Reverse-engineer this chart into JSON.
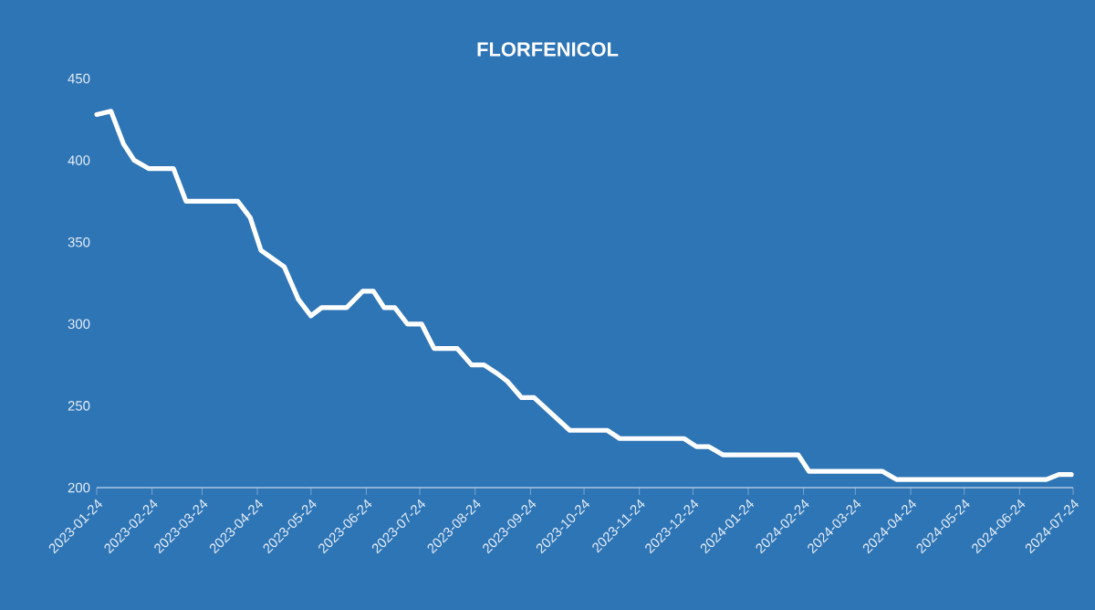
{
  "chart_data": {
    "type": "line",
    "title": "FLORFENICOL",
    "x": [
      "2023-01-24",
      "2023-02-01",
      "2023-02-08",
      "2023-02-14",
      "2023-02-22",
      "2023-03-08",
      "2023-03-15",
      "2023-04-13",
      "2023-04-20",
      "2023-04-26",
      "2023-05-09",
      "2023-05-17",
      "2023-05-24",
      "2023-05-30",
      "2023-06-13",
      "2023-06-22",
      "2023-06-28",
      "2023-07-04",
      "2023-07-10",
      "2023-07-17",
      "2023-07-25",
      "2023-08-01",
      "2023-08-14",
      "2023-08-22",
      "2023-08-29",
      "2023-09-05",
      "2023-09-11",
      "2023-09-19",
      "2023-09-26",
      "2023-10-16",
      "2023-11-06",
      "2023-11-13",
      "2023-12-19",
      "2023-12-26",
      "2024-01-02",
      "2024-01-10",
      "2024-02-21",
      "2024-02-27",
      "2024-04-08",
      "2024-04-16",
      "2024-07-09",
      "2024-07-16",
      "2024-07-23"
    ],
    "series": [
      {
        "color": "#ffffff",
        "values": [
          428,
          430,
          410,
          400,
          395,
          395,
          375,
          375,
          365,
          345,
          335,
          315,
          305,
          310,
          310,
          320,
          320,
          310,
          310,
          300,
          300,
          285,
          285,
          275,
          275,
          270,
          265,
          255,
          255,
          235,
          235,
          230,
          230,
          225,
          225,
          220,
          220,
          210,
          210,
          205,
          205,
          208,
          208
        ]
      }
    ],
    "xlim": [
      "2023-01-24",
      "2024-07-24"
    ],
    "xticks": [
      "2023-01-24",
      "2023-02-24",
      "2023-03-24",
      "2023-04-24",
      "2023-05-24",
      "2023-06-24",
      "2023-07-24",
      "2023-08-24",
      "2023-09-24",
      "2023-10-24",
      "2023-11-24",
      "2023-12-24",
      "2024-01-24",
      "2024-02-24",
      "2024-03-24",
      "2024-04-24",
      "2024-05-24",
      "2024-06-24",
      "2024-07-24"
    ],
    "ylim": [
      200,
      450
    ],
    "yticks": [
      200,
      250,
      300,
      350,
      400,
      450
    ],
    "grid": false,
    "legend": false,
    "marker": "none",
    "line_style": "solid"
  }
}
